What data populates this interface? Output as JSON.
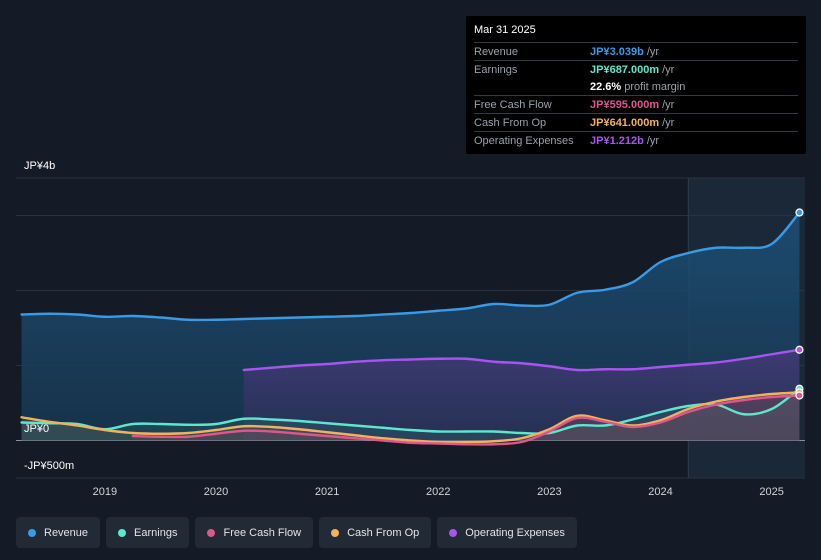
{
  "tooltip": {
    "date": "Mar 31 2025",
    "rows": [
      {
        "label": "Revenue",
        "value": "JP¥3.039b",
        "unit": "/yr",
        "color": "#3a9ae6"
      },
      {
        "label": "Earnings",
        "value": "JP¥687.000m",
        "unit": "/yr",
        "color": "#5ee6cf"
      },
      {
        "label": "",
        "value": "22.6%",
        "unit": "profit margin",
        "color": "#ffffff"
      },
      {
        "label": "Free Cash Flow",
        "value": "JP¥595.000m",
        "unit": "/yr",
        "color": "#e0558a"
      },
      {
        "label": "Cash From Op",
        "value": "JP¥641.000m",
        "unit": "/yr",
        "color": "#f2b15c"
      },
      {
        "label": "Operating Expenses",
        "value": "JP¥1.212b",
        "unit": "/yr",
        "color": "#a855f0"
      }
    ]
  },
  "legend": [
    {
      "label": "Revenue",
      "color": "#3a9ae6"
    },
    {
      "label": "Earnings",
      "color": "#5ee6cf"
    },
    {
      "label": "Free Cash Flow",
      "color": "#e0558a"
    },
    {
      "label": "Cash From Op",
      "color": "#f2b15c"
    },
    {
      "label": "Operating Expenses",
      "color": "#a855f0"
    }
  ],
  "chart_data": {
    "type": "line",
    "title": "",
    "y_tick_labels": {
      "top": "JP¥4b",
      "zero": "JP¥0",
      "bottom": "-JP¥500m"
    },
    "ylim": [
      -0.5,
      3.5
    ],
    "xlim": [
      2018.2,
      2025.3
    ],
    "x_ticks": [
      2019,
      2020,
      2021,
      2022,
      2023,
      2024,
      2025
    ],
    "x_tick_labels": [
      "2019",
      "2020",
      "2021",
      "2022",
      "2023",
      "2024",
      "2025"
    ],
    "forecast_start": 2024.25,
    "series": [
      {
        "name": "Revenue",
        "color": "#3a9ae6",
        "fill": true,
        "x": [
          2018.25,
          2018.5,
          2018.75,
          2019.0,
          2019.25,
          2019.5,
          2019.75,
          2020.0,
          2020.25,
          2020.5,
          2020.75,
          2021.0,
          2021.25,
          2021.5,
          2021.75,
          2022.0,
          2022.25,
          2022.5,
          2022.75,
          2023.0,
          2023.25,
          2023.5,
          2023.75,
          2024.0,
          2024.25,
          2024.5,
          2024.75,
          2025.0,
          2025.25
        ],
        "values": [
          1.68,
          1.69,
          1.68,
          1.65,
          1.66,
          1.64,
          1.61,
          1.61,
          1.62,
          1.63,
          1.64,
          1.65,
          1.66,
          1.68,
          1.7,
          1.73,
          1.76,
          1.82,
          1.8,
          1.81,
          1.97,
          2.01,
          2.11,
          2.38,
          2.5,
          2.57,
          2.57,
          2.62,
          3.04
        ]
      },
      {
        "name": "Operating Expenses",
        "color": "#a855f0",
        "fill": true,
        "x": [
          2020.25,
          2020.5,
          2020.75,
          2021.0,
          2021.25,
          2021.5,
          2021.75,
          2022.0,
          2022.25,
          2022.5,
          2022.75,
          2023.0,
          2023.25,
          2023.5,
          2023.75,
          2024.0,
          2024.25,
          2024.5,
          2024.75,
          2025.0,
          2025.25
        ],
        "values": [
          0.94,
          0.97,
          1.0,
          1.02,
          1.05,
          1.07,
          1.08,
          1.09,
          1.09,
          1.05,
          1.03,
          0.99,
          0.94,
          0.95,
          0.95,
          0.98,
          1.01,
          1.04,
          1.09,
          1.15,
          1.21
        ]
      },
      {
        "name": "Earnings",
        "color": "#5ee6cf",
        "fill": true,
        "x": [
          2018.25,
          2018.5,
          2018.75,
          2019.0,
          2019.25,
          2019.5,
          2019.75,
          2020.0,
          2020.25,
          2020.5,
          2020.75,
          2021.0,
          2021.25,
          2021.5,
          2021.75,
          2022.0,
          2022.25,
          2022.5,
          2022.75,
          2023.0,
          2023.25,
          2023.5,
          2023.75,
          2024.0,
          2024.25,
          2024.5,
          2024.75,
          2025.0,
          2025.25
        ],
        "values": [
          0.24,
          0.23,
          0.22,
          0.15,
          0.22,
          0.22,
          0.21,
          0.22,
          0.29,
          0.28,
          0.26,
          0.23,
          0.2,
          0.17,
          0.14,
          0.12,
          0.12,
          0.12,
          0.1,
          0.1,
          0.2,
          0.2,
          0.28,
          0.38,
          0.46,
          0.48,
          0.35,
          0.42,
          0.69
        ]
      },
      {
        "name": "Cash From Op",
        "color": "#f2b15c",
        "fill": true,
        "x": [
          2018.25,
          2018.5,
          2018.75,
          2019.0,
          2019.25,
          2019.5,
          2019.75,
          2020.0,
          2020.25,
          2020.5,
          2020.75,
          2021.0,
          2021.25,
          2021.5,
          2021.75,
          2022.0,
          2022.25,
          2022.5,
          2022.75,
          2023.0,
          2023.25,
          2023.5,
          2023.75,
          2024.0,
          2024.25,
          2024.5,
          2024.75,
          2025.0,
          2025.25
        ],
        "values": [
          0.31,
          0.25,
          0.2,
          0.14,
          0.1,
          0.09,
          0.1,
          0.14,
          0.19,
          0.18,
          0.15,
          0.11,
          0.07,
          0.03,
          0.0,
          -0.02,
          -0.02,
          -0.01,
          0.03,
          0.15,
          0.33,
          0.27,
          0.2,
          0.27,
          0.42,
          0.52,
          0.58,
          0.62,
          0.64
        ]
      },
      {
        "name": "Free Cash Flow",
        "color": "#e0558a",
        "fill": true,
        "x": [
          2019.25,
          2019.5,
          2019.75,
          2020.0,
          2020.25,
          2020.5,
          2020.75,
          2021.0,
          2021.25,
          2021.5,
          2021.75,
          2022.0,
          2022.25,
          2022.5,
          2022.75,
          2023.0,
          2023.25,
          2023.5,
          2023.75,
          2024.0,
          2024.25,
          2024.5,
          2024.75,
          2025.0,
          2025.25
        ],
        "values": [
          0.06,
          0.05,
          0.05,
          0.09,
          0.13,
          0.12,
          0.09,
          0.06,
          0.03,
          0.0,
          -0.03,
          -0.04,
          -0.05,
          -0.05,
          -0.02,
          0.12,
          0.3,
          0.25,
          0.18,
          0.24,
          0.38,
          0.48,
          0.54,
          0.58,
          0.6
        ]
      }
    ]
  }
}
